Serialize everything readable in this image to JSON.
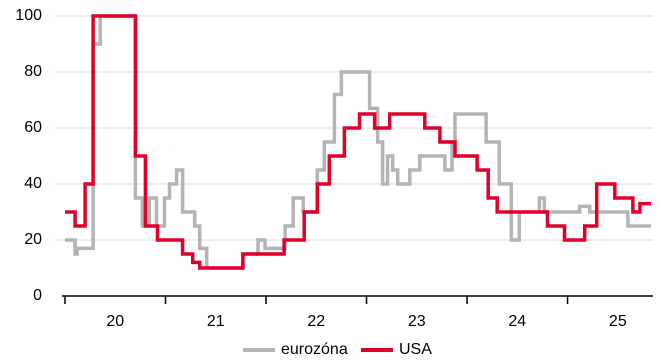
{
  "chart_data": {
    "type": "line",
    "xlim": [
      2020,
      2025.85
    ],
    "xticks": [
      2020,
      2021,
      2022,
      2023,
      2024,
      2025
    ],
    "x_labels": [
      {
        "value": 2020.5,
        "label": "20"
      },
      {
        "value": 2021.5,
        "label": "21"
      },
      {
        "value": 2022.5,
        "label": "22"
      },
      {
        "value": 2023.5,
        "label": "23"
      },
      {
        "value": 2024.5,
        "label": "24"
      },
      {
        "value": 2025.5,
        "label": "25"
      }
    ],
    "ylim": [
      0,
      100
    ],
    "yticks": [
      0,
      20,
      40,
      60,
      80,
      100
    ],
    "grid": true,
    "legend": "bottom",
    "series": [
      {
        "name": "eurozóna",
        "color": "#b4b4b4",
        "x": [
          2020,
          2020.1,
          2020.1,
          2020.12,
          2020.12,
          2020.28,
          2020.28,
          2020.35,
          2020.35,
          2020.7,
          2020.7,
          2020.77,
          2020.77,
          2020.84,
          2020.84,
          2020.91,
          2020.91,
          2020.99,
          2020.99,
          2021.04,
          2021.04,
          2021.11,
          2021.11,
          2021.17,
          2021.17,
          2021.29,
          2021.29,
          2021.34,
          2021.34,
          2021.41,
          2021.41,
          2021.77,
          2021.77,
          2021.92,
          2021.92,
          2021.99,
          2021.99,
          2022.19,
          2022.19,
          2022.27,
          2022.27,
          2022.37,
          2022.37,
          2022.51,
          2022.51,
          2022.58,
          2022.58,
          2022.68,
          2022.68,
          2022.75,
          2022.75,
          2023.03,
          2023.03,
          2023.11,
          2023.11,
          2023.16,
          2023.16,
          2023.21,
          2023.21,
          2023.26,
          2023.26,
          2023.31,
          2023.31,
          2023.43,
          2023.43,
          2023.53,
          2023.53,
          2023.78,
          2023.78,
          2023.85,
          2023.85,
          2023.88,
          2023.88,
          2024.19,
          2024.19,
          2024.32,
          2024.32,
          2024.44,
          2024.44,
          2024.52,
          2024.52,
          2024.72,
          2024.72,
          2024.77,
          2024.77,
          2025.12,
          2025.12,
          2025.22,
          2025.22,
          2025.6,
          2025.6,
          2025.83
        ],
        "values": [
          20,
          20,
          15,
          15,
          17,
          17,
          90,
          90,
          100,
          100,
          35,
          35,
          25,
          25,
          35,
          35,
          25,
          25,
          35,
          35,
          40,
          40,
          45,
          45,
          30,
          30,
          25,
          25,
          17,
          17,
          10,
          10,
          15,
          15,
          20,
          20,
          17,
          17,
          25,
          25,
          35,
          35,
          30,
          30,
          45,
          45,
          55,
          55,
          72,
          72,
          80,
          80,
          67,
          67,
          55,
          55,
          40,
          40,
          50,
          50,
          45,
          45,
          40,
          40,
          45,
          45,
          50,
          50,
          45,
          45,
          55,
          55,
          65,
          65,
          55,
          55,
          40,
          40,
          20,
          20,
          30,
          30,
          35,
          35,
          30,
          30,
          32,
          32,
          30,
          30,
          25,
          25
        ]
      },
      {
        "name": "USA",
        "color": "#e0002b",
        "x": [
          2020,
          2020.1,
          2020.1,
          2020.2,
          2020.2,
          2020.28,
          2020.28,
          2020.7,
          2020.7,
          2020.8,
          2020.8,
          2020.92,
          2020.92,
          2021.17,
          2021.17,
          2021.27,
          2021.27,
          2021.34,
          2021.34,
          2021.77,
          2021.77,
          2022.18,
          2022.18,
          2022.38,
          2022.38,
          2022.51,
          2022.51,
          2022.63,
          2022.63,
          2022.78,
          2022.78,
          2022.93,
          2022.93,
          2023.08,
          2023.08,
          2023.23,
          2023.23,
          2023.58,
          2023.58,
          2023.73,
          2023.73,
          2023.88,
          2023.88,
          2024.1,
          2024.1,
          2024.21,
          2024.21,
          2024.3,
          2024.3,
          2024.8,
          2024.8,
          2024.97,
          2024.97,
          2025.17,
          2025.17,
          2025.29,
          2025.29,
          2025.47,
          2025.47,
          2025.65,
          2025.65,
          2025.72,
          2025.72,
          2025.83
        ],
        "values": [
          30,
          30,
          25,
          25,
          40,
          40,
          100,
          100,
          50,
          50,
          25,
          25,
          20,
          20,
          15,
          15,
          12,
          12,
          10,
          10,
          15,
          15,
          20,
          20,
          30,
          30,
          40,
          40,
          50,
          50,
          60,
          60,
          65,
          65,
          60,
          60,
          65,
          65,
          60,
          60,
          55,
          55,
          50,
          50,
          45,
          45,
          35,
          35,
          30,
          30,
          25,
          25,
          20,
          20,
          25,
          25,
          40,
          40,
          35,
          35,
          30,
          30,
          33,
          33
        ]
      }
    ]
  }
}
